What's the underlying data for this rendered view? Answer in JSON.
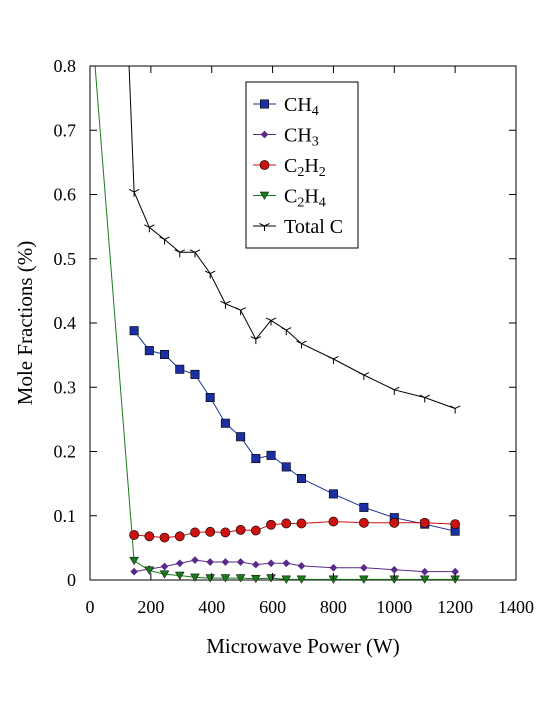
{
  "chart_data": {
    "type": "line",
    "xlabel": "Microwave Power (W)",
    "ylabel": "Mole Fractions (%)",
    "xlim": [
      0,
      1400
    ],
    "ylim": [
      0,
      0.8
    ],
    "xticks": [
      0,
      200,
      400,
      600,
      800,
      1000,
      1200,
      1400
    ],
    "xtick_labels": [
      "0",
      "200",
      "400",
      "600",
      "800",
      "1000",
      "1200",
      "1400"
    ],
    "yticks": [
      0,
      0.1,
      0.2,
      0.3,
      0.4,
      0.5,
      0.6,
      0.7,
      0.8
    ],
    "ytick_labels": [
      "0",
      "0.1",
      "0.2",
      "0.3",
      "0.4",
      "0.5",
      "0.6",
      "0.7",
      "0.8"
    ],
    "grid": false,
    "legend_position": "top-center",
    "series": [
      {
        "key": "ch4",
        "name": "CH4",
        "legend_main": "CH",
        "legend_sub": "4",
        "color": "#1c2fa0",
        "marker": "square",
        "x": [
          145,
          195,
          245,
          295,
          345,
          395,
          445,
          495,
          545,
          595,
          645,
          695,
          800,
          900,
          1000,
          1100,
          1200
        ],
        "y": [
          0.388,
          0.357,
          0.351,
          0.328,
          0.32,
          0.284,
          0.244,
          0.223,
          0.189,
          0.194,
          0.176,
          0.158,
          0.134,
          0.113,
          0.097,
          0.087,
          0.076
        ]
      },
      {
        "key": "ch3",
        "name": "CH3",
        "legend_main": "CH",
        "legend_sub": "3",
        "color": "#5a2a8a",
        "marker": "diamond",
        "x": [
          145,
          195,
          245,
          295,
          345,
          395,
          445,
          495,
          545,
          595,
          645,
          695,
          800,
          900,
          1000,
          1100,
          1200
        ],
        "y": [
          0.013,
          0.017,
          0.021,
          0.026,
          0.031,
          0.028,
          0.028,
          0.028,
          0.024,
          0.026,
          0.026,
          0.022,
          0.019,
          0.019,
          0.016,
          0.013,
          0.013
        ]
      },
      {
        "key": "c2h2",
        "name": "C2H2",
        "legend_main": "C",
        "legend_sub": "2",
        "legend_main2": "H",
        "legend_sub2": "2",
        "color": "#cc1111",
        "marker": "circle",
        "x": [
          145,
          195,
          245,
          295,
          345,
          395,
          445,
          495,
          545,
          595,
          645,
          695,
          800,
          900,
          1000,
          1100,
          1200
        ],
        "y": [
          0.07,
          0.068,
          0.066,
          0.068,
          0.074,
          0.075,
          0.074,
          0.078,
          0.077,
          0.086,
          0.088,
          0.088,
          0.091,
          0.089,
          0.089,
          0.089,
          0.087
        ]
      },
      {
        "key": "c2h4",
        "name": "C2H4",
        "legend_main": "C",
        "legend_sub": "2",
        "legend_main2": "H",
        "legend_sub2": "4",
        "color": "#1a7a1a",
        "marker": "triangle-down",
        "line_start": [
          0,
          0.9
        ],
        "x": [
          145,
          195,
          245,
          295,
          345,
          395,
          445,
          495,
          545,
          595,
          645,
          695,
          800,
          900,
          1000,
          1100,
          1200
        ],
        "y": [
          0.03,
          0.015,
          0.009,
          0.007,
          0.004,
          0.003,
          0.003,
          0.003,
          0.002,
          0.003,
          0.001,
          0.001,
          0.001,
          0.001,
          0.001,
          0.001,
          0.001
        ]
      },
      {
        "key": "total",
        "name": "Total C",
        "legend_main": "Total C",
        "color": "#000000",
        "marker": "asterisk",
        "line_start": [
          120,
          0.9
        ],
        "x": [
          145,
          195,
          245,
          295,
          345,
          395,
          445,
          495,
          545,
          595,
          645,
          695,
          800,
          900,
          1000,
          1100,
          1200
        ],
        "y": [
          0.604,
          0.549,
          0.53,
          0.51,
          0.51,
          0.477,
          0.43,
          0.42,
          0.375,
          0.404,
          0.389,
          0.368,
          0.344,
          0.319,
          0.296,
          0.284,
          0.267
        ]
      }
    ]
  }
}
